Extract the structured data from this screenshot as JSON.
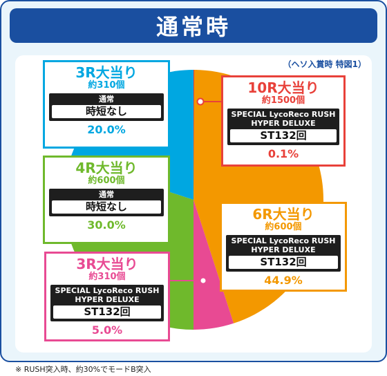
{
  "title": "通常時",
  "note_top": "（ヘソ入賞時 特図1）",
  "footnote": "※ RUSH突入時、約30%でモードB突入",
  "chart_data": {
    "type": "pie",
    "title": "通常時",
    "slices": [
      {
        "label": "10R大当り",
        "count": "約1500個",
        "mode": "SPECIAL LycoReco RUSH HYPER DELUXE",
        "result": "ST132回",
        "pct_label": "0.1%",
        "value": 0.1,
        "color": "#e8413a"
      },
      {
        "label": "6R大当り",
        "count": "約600個",
        "mode": "SPECIAL LycoReco RUSH HYPER DELUXE",
        "result": "ST132回",
        "pct_label": "44.9%",
        "value": 44.9,
        "color": "#f39800"
      },
      {
        "label": "3R大当り",
        "count": "約310個",
        "mode": "SPECIAL LycoReco RUSH HYPER DELUXE",
        "result": "ST132回",
        "pct_label": "5.0%",
        "value": 5.0,
        "color": "#e84a93"
      },
      {
        "label": "4R大当り",
        "count": "約600個",
        "mode": "通常",
        "result": "時短なし",
        "pct_label": "30.0%",
        "value": 30.0,
        "color": "#6fb92c"
      },
      {
        "label": "3R大当り",
        "count": "約310個",
        "mode": "通常",
        "result": "時短なし",
        "pct_label": "20.0%",
        "value": 20.0,
        "color": "#00a7e1"
      }
    ]
  }
}
